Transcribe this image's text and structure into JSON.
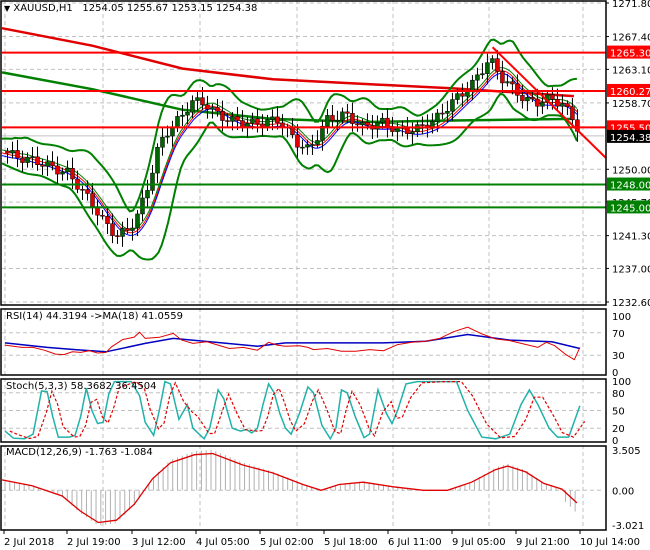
{
  "header": {
    "symbol_label": "XAUUSD,H1",
    "open": "1254.05",
    "high": "1255.67",
    "low": "1253.15",
    "close": "1254.38"
  },
  "colors": {
    "background": "#ffffff",
    "grid": "#c0c0c0",
    "bull_candle": "#006400",
    "bear_candle": "#e00000",
    "resistance": "#ff0000",
    "support": "#008000",
    "bollinger": "#008000",
    "ma_slow_red": "#e00000",
    "ma_long_green": "#008000",
    "ema_blue": "#0000ff",
    "ema_red": "#ff0000",
    "ema_green": "#008000",
    "rsi_line": "#e00000",
    "rsi_ma": "#0000c0",
    "stoch_main": "#20b2aa",
    "stoch_signal": "#e00000",
    "macd_hist": "#b0b0b0",
    "macd_signal": "#e00000",
    "current_price_tag": "#000000"
  },
  "chart_data": [
    {
      "type": "candlestick",
      "title": "XAUUSD,H1 1254.05 1255.67 1253.15 1254.38",
      "ylim": [
        1232.6,
        1271.8
      ],
      "y_ticks": [
        "1271.80",
        "1267.40",
        "1263.10",
        "1258.70",
        "1254.38",
        "1250.00",
        "1245.70",
        "1241.30",
        "1237.00",
        "1232.60"
      ],
      "grid": true,
      "horizontal_levels": [
        {
          "value": 1265.3,
          "label": "1265.30",
          "color": "#ff0000",
          "kind": "resistance"
        },
        {
          "value": 1260.27,
          "label": "1260.27",
          "color": "#ff0000",
          "kind": "resistance"
        },
        {
          "value": 1255.5,
          "label": "1255.50",
          "color": "#ff0000",
          "kind": "resistance"
        },
        {
          "value": 1248.0,
          "label": "1248.00",
          "color": "#008000",
          "kind": "support"
        },
        {
          "value": 1245.0,
          "label": "1245.00",
          "color": "#008000",
          "kind": "support"
        }
      ],
      "current_price": {
        "value": 1254.38,
        "label": "1254.38"
      },
      "trendline": {
        "from": [
          0.815,
          1266.0
        ],
        "to": [
          1.0,
          1252.8
        ],
        "color": "#ff0000"
      },
      "price_path": [
        [
          0.0,
          1252.4
        ],
        [
          0.03,
          1251.5
        ],
        [
          0.06,
          1251.0
        ],
        [
          0.09,
          1250.0
        ],
        [
          0.11,
          1249.5
        ],
        [
          0.13,
          1247.5
        ],
        [
          0.15,
          1245.5
        ],
        [
          0.17,
          1243.0
        ],
        [
          0.19,
          1241.3
        ],
        [
          0.21,
          1242.0
        ],
        [
          0.225,
          1244.0
        ],
        [
          0.24,
          1247.0
        ],
        [
          0.26,
          1253.0
        ],
        [
          0.28,
          1255.5
        ],
        [
          0.3,
          1257.0
        ],
        [
          0.315,
          1259.0
        ],
        [
          0.34,
          1258.5
        ],
        [
          0.36,
          1257.0
        ],
        [
          0.39,
          1256.2
        ],
        [
          0.42,
          1256.0
        ],
        [
          0.46,
          1256.5
        ],
        [
          0.49,
          1253.5
        ],
        [
          0.51,
          1252.5
        ],
        [
          0.54,
          1256.5
        ],
        [
          0.57,
          1257.2
        ],
        [
          0.6,
          1255.5
        ],
        [
          0.63,
          1256.2
        ],
        [
          0.66,
          1255.0
        ],
        [
          0.69,
          1255.3
        ],
        [
          0.72,
          1256.5
        ],
        [
          0.75,
          1259.0
        ],
        [
          0.78,
          1261.0
        ],
        [
          0.81,
          1264.5
        ],
        [
          0.83,
          1262.0
        ],
        [
          0.85,
          1260.5
        ],
        [
          0.87,
          1259.0
        ],
        [
          0.89,
          1258.8
        ],
        [
          0.91,
          1259.3
        ],
        [
          0.93,
          1258.6
        ],
        [
          0.95,
          1256.5
        ],
        [
          0.97,
          1253.0
        ],
        [
          0.985,
          1249.0
        ],
        [
          0.995,
          1250.5
        ],
        [
          1.0,
          1254.38
        ]
      ]
    },
    {
      "type": "line",
      "title": "RSI(14) 44.3194 ->MA(18) 41.0559",
      "ylim": [
        0,
        100
      ],
      "y_ticks": [
        "100",
        "70",
        "30",
        "0"
      ],
      "series": [
        {
          "name": "RSI(14)",
          "last": 44.3194,
          "values": [
            [
              0,
              48
            ],
            [
              0.06,
              44
            ],
            [
              0.1,
              44
            ],
            [
              0.14,
              39
            ],
            [
              0.18,
              32
            ],
            [
              0.21,
              31
            ],
            [
              0.24,
              36
            ],
            [
              0.27,
              35
            ],
            [
              0.3,
              38
            ],
            [
              0.33,
              34
            ],
            [
              0.36,
              35
            ],
            [
              0.38,
              45
            ],
            [
              0.42,
              58
            ],
            [
              0.46,
              62
            ],
            [
              0.48,
              71
            ],
            [
              0.5,
              60
            ],
            [
              0.55,
              62
            ],
            [
              0.6,
              69
            ],
            [
              0.63,
              57
            ],
            [
              0.67,
              51
            ],
            [
              0.72,
              54
            ],
            [
              0.76,
              48
            ],
            [
              0.8,
              42
            ],
            [
              0.85,
              44
            ],
            [
              0.9,
              39
            ],
            [
              0.94,
              53
            ],
            [
              0.97,
              48
            ],
            [
              1.0,
              46
            ],
            [
              1.0,
              46
            ],
            [
              1.05,
              47
            ],
            [
              1.08,
              44
            ],
            [
              1.1,
              40
            ],
            [
              1.15,
              42
            ],
            [
              1.2,
              37
            ],
            [
              1.25,
              37
            ],
            [
              1.3,
              40
            ],
            [
              1.35,
              38
            ],
            [
              1.4,
              49
            ],
            [
              1.45,
              53
            ],
            [
              1.5,
              55
            ],
            [
              1.55,
              60
            ],
            [
              1.6,
              72
            ],
            [
              1.65,
              80
            ],
            [
              1.7,
              68
            ],
            [
              1.75,
              59
            ],
            [
              1.8,
              56
            ],
            [
              1.85,
              50
            ],
            [
              1.9,
              44
            ],
            [
              1.93,
              53
            ],
            [
              1.96,
              47
            ],
            [
              2.0,
              31
            ],
            [
              2.03,
              22
            ],
            [
              2.05,
              44
            ]
          ]
        },
        {
          "name": "MA(18)",
          "last": 41.0559,
          "values": [
            [
              0,
              52
            ],
            [
              0.15,
              44
            ],
            [
              0.25,
              40
            ],
            [
              0.36,
              36
            ],
            [
              0.5,
              51
            ],
            [
              0.6,
              60
            ],
            [
              0.75,
              53
            ],
            [
              0.9,
              46
            ],
            [
              1.0,
              52
            ],
            [
              1.1,
              52
            ],
            [
              1.2,
              52
            ],
            [
              1.35,
              52
            ],
            [
              1.5,
              55
            ],
            [
              1.65,
              67
            ],
            [
              1.8,
              57
            ],
            [
              1.95,
              54
            ],
            [
              2.05,
              42
            ]
          ]
        }
      ]
    },
    {
      "type": "line",
      "title": "Stoch(5,3,3) 58.3682 36.4504",
      "ylim": [
        0,
        100
      ],
      "y_ticks": [
        "100",
        "80",
        "50",
        "20",
        "0"
      ],
      "series": [
        {
          "name": "%K",
          "last": 58.3682
        },
        {
          "name": "%D",
          "last": 36.4504
        }
      ]
    },
    {
      "type": "bar+line",
      "title": "MACD(12,26,9) -1.763 -1.084",
      "ylim": [
        -3.021,
        3.505
      ],
      "y_ticks": [
        "3.505",
        "0.00",
        "-3.021"
      ],
      "series": [
        {
          "name": "MACD",
          "last": -1.763
        },
        {
          "name": "Signal",
          "last": -1.084
        }
      ]
    }
  ],
  "x_axis": {
    "labels": [
      "2 Jul 2018",
      "2 Jul 19:00",
      "3 Jul 12:00",
      "4 Jul 05:00",
      "5 Jul 02:00",
      "5 Jul 18:00",
      "6 Jul 11:00",
      "9 Jul 05:00",
      "9 Jul 21:00",
      "10 Jul 14:00"
    ]
  },
  "panels": {
    "main_title": "XAUUSD,H1  1254.05 1255.67 1253.15 1254.38",
    "rsi_title": "RSI(14) 44.3194  ->MA(18) 41.0559",
    "stoch_title": "Stoch(5,3,3) 58.3682 36.4504",
    "macd_title": "MACD(12,26,9) -1.763 -1.084"
  }
}
